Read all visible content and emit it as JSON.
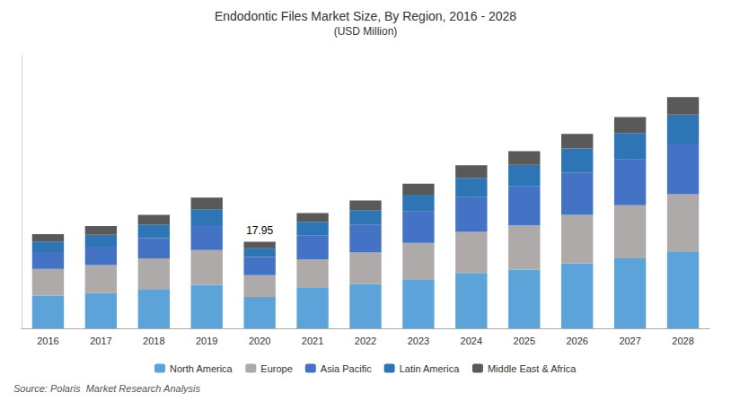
{
  "chart_data": {
    "type": "bar",
    "title": "Endodontic Files Market Size, By Region, 2016 - 2028",
    "subtitle": "(USD Million)",
    "categories": [
      "2016",
      "2017",
      "2018",
      "2019",
      "2020",
      "2021",
      "2022",
      "2023",
      "2024",
      "2025",
      "2026",
      "2027",
      "2028"
    ],
    "series": [
      {
        "name": "North America",
        "color": "#5BA3D9",
        "values": [
          6.8,
          7.3,
          8.0,
          9.0,
          6.5,
          8.5,
          9.2,
          10.2,
          11.5,
          12.2,
          13.5,
          14.5,
          15.8
        ]
      },
      {
        "name": "Europe",
        "color": "#AEAAAA",
        "values": [
          5.5,
          5.8,
          6.5,
          7.2,
          4.5,
          5.8,
          6.5,
          7.5,
          8.5,
          9.2,
          10.0,
          11.0,
          12.0
        ]
      },
      {
        "name": "Asia Pacific",
        "color": "#4472C4",
        "values": [
          3.5,
          3.8,
          4.2,
          5.2,
          3.8,
          5.0,
          5.8,
          6.5,
          7.2,
          8.0,
          8.8,
          9.5,
          10.5
        ]
      },
      {
        "name": "Latin America",
        "color": "#2E75B6",
        "values": [
          2.2,
          2.5,
          2.8,
          3.2,
          1.8,
          2.8,
          3.0,
          3.5,
          4.0,
          4.5,
          5.0,
          5.5,
          6.0
        ]
      },
      {
        "name": "Middle East & Africa",
        "color": "#595959",
        "values": [
          1.5,
          1.8,
          2.0,
          2.5,
          1.35,
          1.8,
          2.0,
          2.3,
          2.6,
          2.8,
          3.0,
          3.3,
          3.6
        ]
      }
    ],
    "stacked": true,
    "ylim": [
      0,
      56.522
    ],
    "tick_labels": "x",
    "grid": false,
    "legend": "bottom",
    "annotations": [
      {
        "text": "17.95",
        "x": "2020"
      }
    ],
    "source": "Source: Polaris  Market Research Analysis"
  }
}
